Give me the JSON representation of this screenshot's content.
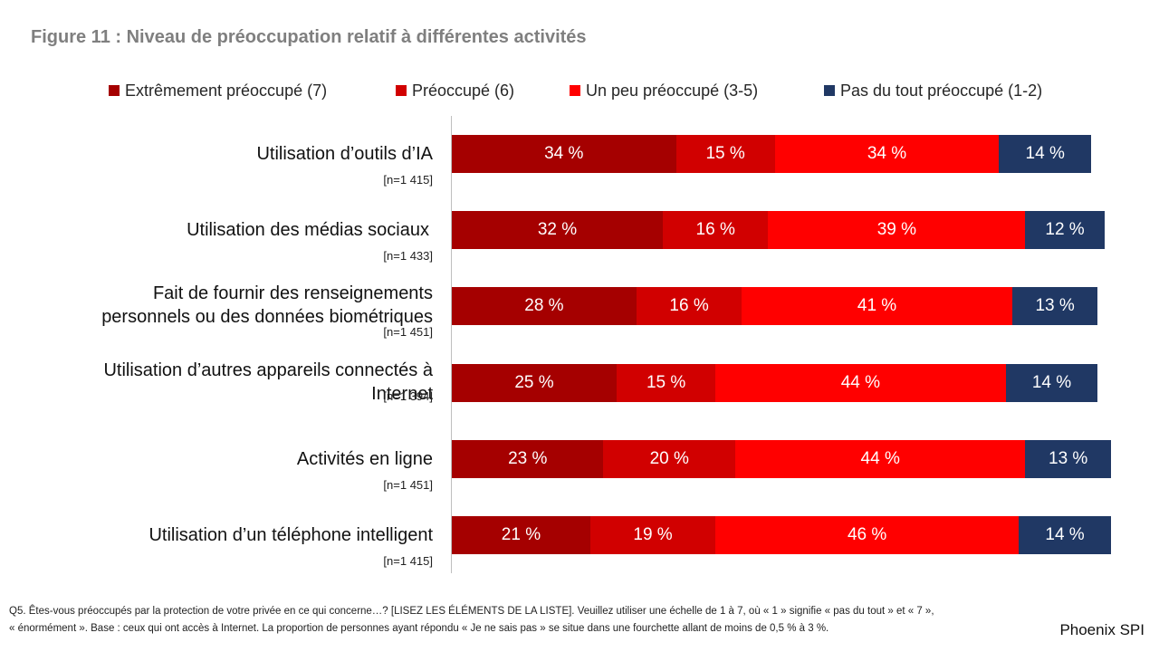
{
  "chart_data": {
    "type": "bar",
    "orientation": "horizontal",
    "stacked": true,
    "title": "Figure 11 : Niveau de préoccupation relatif à différentes activités",
    "categories": [
      "Utilisation d’outils d’IA",
      "Utilisation des médias sociaux",
      "Fait de fournir des renseignements personnels ou des données biométriques",
      "Utilisation d’autres appareils connectés à Internet",
      "Activités en ligne",
      "Utilisation d’un téléphone intelligent"
    ],
    "category_lines": [
      [
        "Utilisation d’outils d’IA"
      ],
      [
        "Utilisation des médias sociaux"
      ],
      [
        "Fait de fournir des renseignements",
        "personnels ou des données biométriques"
      ],
      [
        "Utilisation d’autres appareils connectés à",
        "Internet"
      ],
      [
        "Activités en ligne"
      ],
      [
        "Utilisation d’un téléphone intelligent"
      ]
    ],
    "sample_sizes": [
      "[n=1 415]",
      "[n=1 433]",
      "[n=1 451]",
      "[n=1 394]",
      "[n=1 451]",
      "[n=1 415]"
    ],
    "series": [
      {
        "name": "Extrêmement préoccupé (7)",
        "color": "#a50000",
        "values": [
          34,
          32,
          28,
          25,
          23,
          21
        ]
      },
      {
        "name": "Préoccupé (6)",
        "color": "#d10000",
        "values": [
          15,
          16,
          16,
          15,
          20,
          19
        ]
      },
      {
        "name": "Un peu préoccupé (3-5)",
        "color": "#ff0000",
        "values": [
          34,
          39,
          41,
          44,
          44,
          46
        ]
      },
      {
        "name": "Pas du tout préoccupé (1-2)",
        "color": "#203864",
        "values": [
          14,
          12,
          13,
          14,
          13,
          14
        ]
      }
    ],
    "value_suffix": " %",
    "xlim": [
      0,
      100
    ],
    "legend_position": "top"
  },
  "footnote_lines": [
    "Q5. Êtes-vous préoccupés par la protection de votre privée en ce qui concerne…? [LISEZ LES ÉLÉMENTS DE LA LISTE]. Veuillez utiliser une échelle de 1 à 7, où « 1 » signifie « pas du tout » et « 7 »,",
    "« énormément ». Base : ceux qui ont accès à Internet. La proportion de personnes ayant répondu « Je ne sais pas » se situe dans une fourchette allant de moins de 0,5 % à 3 %."
  ],
  "brand": "Phoenix SPI"
}
